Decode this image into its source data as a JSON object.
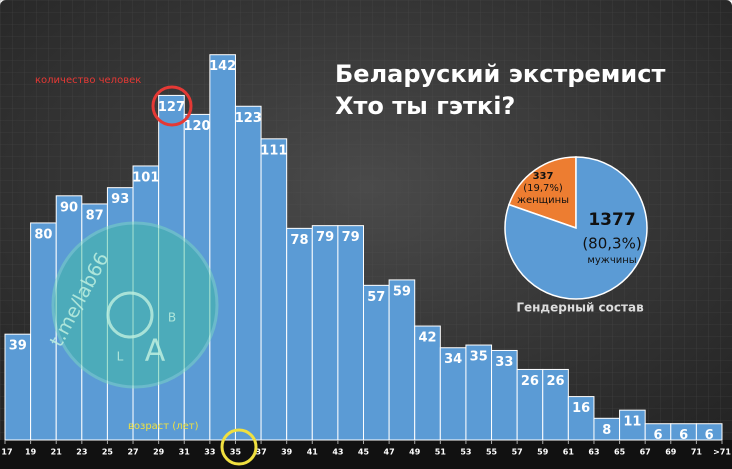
{
  "chart_data": [
    {
      "type": "histogram",
      "title_lines": [
        "Беларуский экстремист",
        "Хто ты гэткі?"
      ],
      "bins": [
        17,
        19,
        21,
        23,
        25,
        27,
        29,
        31,
        33,
        35,
        37,
        39,
        41,
        43,
        45,
        47,
        49,
        51,
        53,
        55,
        57,
        59,
        61,
        63,
        65,
        67,
        69,
        71,
        73
      ],
      "values": [
        39,
        80,
        90,
        87,
        93,
        101,
        127,
        120,
        142,
        123,
        111,
        78,
        79,
        79,
        57,
        59,
        42,
        34,
        35,
        33,
        26,
        26,
        16,
        8,
        11,
        6,
        6,
        6
      ],
      "color": "#5b9bd5",
      "ylim": [
        0,
        150
      ],
      "xlim": [
        17,
        73
      ],
      "xticks": [
        17,
        19,
        21,
        23,
        25,
        27,
        29,
        31,
        33,
        35,
        37,
        39,
        41,
        43,
        45,
        47,
        49,
        51,
        53,
        55,
        57,
        59,
        61,
        63,
        65,
        67,
        69,
        71,
        {
          "value": 73,
          "label": ">71"
        }
      ],
      "annotations": [
        "количество человек",
        "возраст (лет)"
      ],
      "watermark": {
        "text": "t.me/lab66",
        "letters": [
          "B",
          "L",
          "A"
        ]
      }
    },
    {
      "type": "pie",
      "title": "Гендерный состав",
      "categories": [
        "женщины",
        "мужчины"
      ],
      "values": [
        337,
        1377
      ],
      "percent_labels": [
        "(19,7%)",
        "(80,3%)"
      ],
      "colors": [
        "#ed7d31",
        "#5b9bd5"
      ]
    }
  ]
}
